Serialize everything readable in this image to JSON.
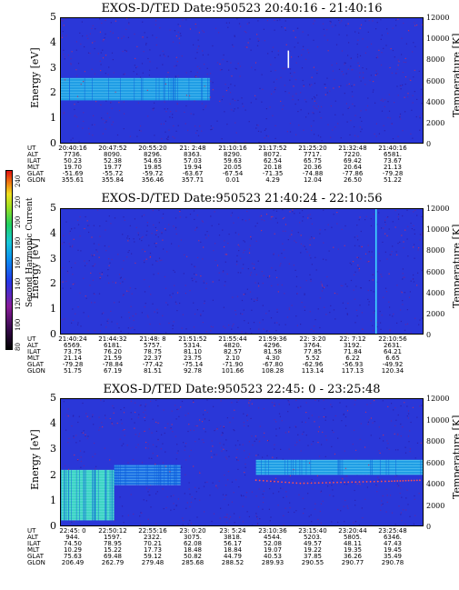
{
  "colorbar": {
    "label": "Second Harmonic Current",
    "ticks": [
      "240",
      "220",
      "200",
      "180",
      "160",
      "140",
      "120",
      "100",
      "80"
    ]
  },
  "panels": [
    {
      "title": "EXOS-D/TED   Date:950523  20:40:16 - 21:40:16",
      "ylabel": "Energy [eV]",
      "y2label": "Temperature [K]",
      "yticks": [
        "5",
        "4",
        "3",
        "2",
        "1",
        "0"
      ],
      "y2ticks": [
        "12000",
        "10000",
        "8000",
        "6000",
        "4000",
        "2000",
        "0"
      ],
      "ephem_labels": [
        "UT",
        "ALT",
        "ILAT",
        "MLT",
        "GLAT",
        "GLON"
      ],
      "ephem": [
        [
          "20:40:16",
          "20:47:52",
          "20:55:20",
          "21: 2:48",
          "21:10:16",
          "21:17:52",
          "21:25:20",
          "21:32:48",
          "21:40:16"
        ],
        [
          "7736.",
          "8090.",
          "8296.",
          "8363.",
          "8290.",
          "8072.",
          "7717.",
          "7220.",
          "6581."
        ],
        [
          "50.23",
          "52.38",
          "54.63",
          "57.03",
          "59.63",
          "62.54",
          "65.75",
          "69.42",
          "73.67"
        ],
        [
          "19.70",
          "19.77",
          "19.85",
          "19.94",
          "20.05",
          "20.18",
          "20.36",
          "20.64",
          "21.13"
        ],
        [
          "-51.69",
          "-55.72",
          "-59.72",
          "-63.67",
          "-67.54",
          "-71.35",
          "-74.88",
          "-77.86",
          "-79.28"
        ],
        [
          "355.61",
          "355.84",
          "356.46",
          "357.71",
          "0.01",
          "4.29",
          "12.04",
          "26.50",
          "51.22"
        ]
      ]
    },
    {
      "title": "EXOS-D/TED   Date:950523  21:40:24 - 22:10:56",
      "ylabel": "Energy [eV]",
      "y2label": "Temperature [K]",
      "yticks": [
        "5",
        "4",
        "3",
        "2",
        "1",
        "0"
      ],
      "y2ticks": [
        "12000",
        "10000",
        "8000",
        "6000",
        "4000",
        "2000",
        "0"
      ],
      "ephem_labels": [
        "UT",
        "ALT",
        "ILAT",
        "MLT",
        "GLAT",
        "GLON"
      ],
      "ephem": [
        [
          "21:40:24",
          "21:44:32",
          "21:48: 8",
          "21:51:52",
          "21:55:44",
          "21:59:36",
          "22: 3:20",
          "22: 7:12",
          "22:10:56"
        ],
        [
          "6569.",
          "6181.",
          "5757.",
          "5314.",
          "4820.",
          "4296.",
          "3764.",
          "3192.",
          "2631."
        ],
        [
          "73.75",
          "76.20",
          "78.75",
          "81.10",
          "82.57",
          "81.58",
          "77.85",
          "71.84",
          "64.21"
        ],
        [
          "21.14",
          "21.59",
          "22.37",
          "23.75",
          "2.10",
          "4.30",
          "5.52",
          "6.22",
          "6.65"
        ],
        [
          "-79.28",
          "-78.84",
          "-77.42",
          "-75.14",
          "-71.90",
          "-67.80",
          "-62.96",
          "-56.93",
          "-49.92"
        ],
        [
          "51.75",
          "67.19",
          "81.51",
          "92.78",
          "101.66",
          "108.28",
          "113.14",
          "117.13",
          "120.34"
        ]
      ]
    },
    {
      "title": "EXOS-D/TED   Date:950523  22:45: 0 - 23:25:48",
      "ylabel": "Energy [eV]",
      "y2label": "Temperature [K]",
      "yticks": [
        "5",
        "4",
        "3",
        "2",
        "1",
        "0"
      ],
      "y2ticks": [
        "12000",
        "10000",
        "8000",
        "6000",
        "4000",
        "2000",
        "0"
      ],
      "ephem_labels": [
        "UT",
        "ALT",
        "ILAT",
        "MLT",
        "GLAT",
        "GLON"
      ],
      "ephem": [
        [
          "22:45: 0",
          "22:50:12",
          "22:55:16",
          "23: 0:20",
          "23: 5:24",
          "23:10:36",
          "23:15:40",
          "23:20:44",
          "23:25:48"
        ],
        [
          "944.",
          "1597.",
          "2322.",
          "3075.",
          "3818.",
          "4544.",
          "5203.",
          "5805.",
          "6346."
        ],
        [
          "74.50",
          "78.95",
          "70.21",
          "62.08",
          "56.17",
          "52.08",
          "49.57",
          "48.11",
          "47.43"
        ],
        [
          "10.29",
          "15.22",
          "17.73",
          "18.48",
          "18.84",
          "19.07",
          "19.22",
          "19.35",
          "19.45"
        ],
        [
          "75.63",
          "69.48",
          "59.12",
          "50.82",
          "44.79",
          "40.53",
          "37.85",
          "36.26",
          "35.49"
        ],
        [
          "206.49",
          "262.79",
          "279.48",
          "285.68",
          "288.52",
          "289.93",
          "290.55",
          "290.77",
          "290.78"
        ]
      ]
    }
  ],
  "chart_data": [
    {
      "type": "heatmap",
      "title": "EXOS-D/TED   Date:950523  20:40:16 - 21:40:16",
      "xlabel": "UT",
      "ylabel": "Energy [eV]",
      "y2label": "Temperature [K]",
      "ylim": [
        0,
        5
      ],
      "y2lim": [
        0,
        12000
      ],
      "colorbar_label": "Second Harmonic Current",
      "colorbar_range": [
        80,
        240
      ],
      "bands": [
        {
          "x_start": "20:40:16",
          "x_end": "21:05:00",
          "e_low": 1.7,
          "e_high": 2.6,
          "level": "high"
        }
      ],
      "features": [
        {
          "x": "21:18:00",
          "e_low": 3.0,
          "e_high": 3.7,
          "note": "white vertical spike"
        }
      ]
    },
    {
      "type": "heatmap",
      "title": "EXOS-D/TED   Date:950523  21:40:24 - 22:10:56",
      "xlabel": "UT",
      "ylabel": "Energy [eV]",
      "y2label": "Temperature [K]",
      "ylim": [
        0,
        5
      ],
      "y2lim": [
        0,
        12000
      ],
      "colorbar_label": "Second Harmonic Current",
      "colorbar_range": [
        80,
        240
      ],
      "bands": [],
      "features": [
        {
          "x": "22:07:00",
          "e_low": 0,
          "e_high": 5,
          "note": "cyan vertical streak"
        }
      ]
    },
    {
      "type": "heatmap",
      "title": "EXOS-D/TED   Date:950523  22:45: 0 - 23:25:48",
      "xlabel": "UT",
      "ylabel": "Energy [eV]",
      "y2label": "Temperature [K]",
      "ylim": [
        0,
        5
      ],
      "y2lim": [
        0,
        12000
      ],
      "colorbar_label": "Second Harmonic Current",
      "colorbar_range": [
        80,
        240
      ],
      "bands": [
        {
          "x_start": "22:45:00",
          "x_end": "22:51:00",
          "e_low": 0.2,
          "e_high": 2.2,
          "level": "very high"
        },
        {
          "x_start": "22:51:00",
          "x_end": "22:58:30",
          "e_low": 1.6,
          "e_high": 2.4,
          "level": "medium"
        },
        {
          "x_start": "23:07:00",
          "x_end": "23:25:48",
          "e_low": 2.0,
          "e_high": 2.6,
          "level": "high"
        }
      ],
      "temperature_trace": [
        {
          "x": "23:07:00",
          "T": 4300
        },
        {
          "x": "23:12:00",
          "T": 4000
        },
        {
          "x": "23:17:00",
          "T": 4100
        },
        {
          "x": "23:22:00",
          "T": 4200
        },
        {
          "x": "23:25:48",
          "T": 4300
        }
      ]
    }
  ]
}
